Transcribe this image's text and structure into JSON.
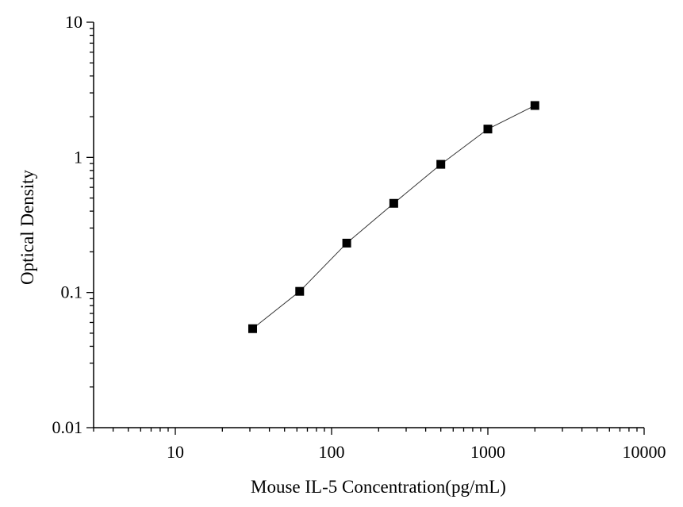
{
  "chart_data": {
    "type": "line",
    "title": "",
    "xlabel": "Mouse IL-5 Concentration(pg/mL)",
    "ylabel": "Optical Density",
    "x_scale": "log",
    "y_scale": "log",
    "xlim": [
      3,
      10000
    ],
    "ylim": [
      0.01,
      10
    ],
    "x_ticks": [
      {
        "value": 10,
        "label": "10"
      },
      {
        "value": 100,
        "label": "100"
      },
      {
        "value": 1000,
        "label": "1000"
      },
      {
        "value": 10000,
        "label": "10000"
      }
    ],
    "y_ticks": [
      {
        "value": 0.01,
        "label": "0.01"
      },
      {
        "value": 0.1,
        "label": "0.1"
      },
      {
        "value": 1,
        "label": "1"
      },
      {
        "value": 10,
        "label": "10"
      }
    ],
    "grid": false,
    "legend": "none",
    "marker": "square",
    "series": [
      {
        "x": [
          31.25,
          62.5,
          125,
          250,
          500,
          1000,
          2000
        ],
        "y": [
          0.054,
          0.102,
          0.232,
          0.457,
          0.888,
          1.62,
          2.42
        ]
      }
    ],
    "colors": {
      "axis": "#000000",
      "line": "#333333",
      "marker": "#000000"
    }
  }
}
